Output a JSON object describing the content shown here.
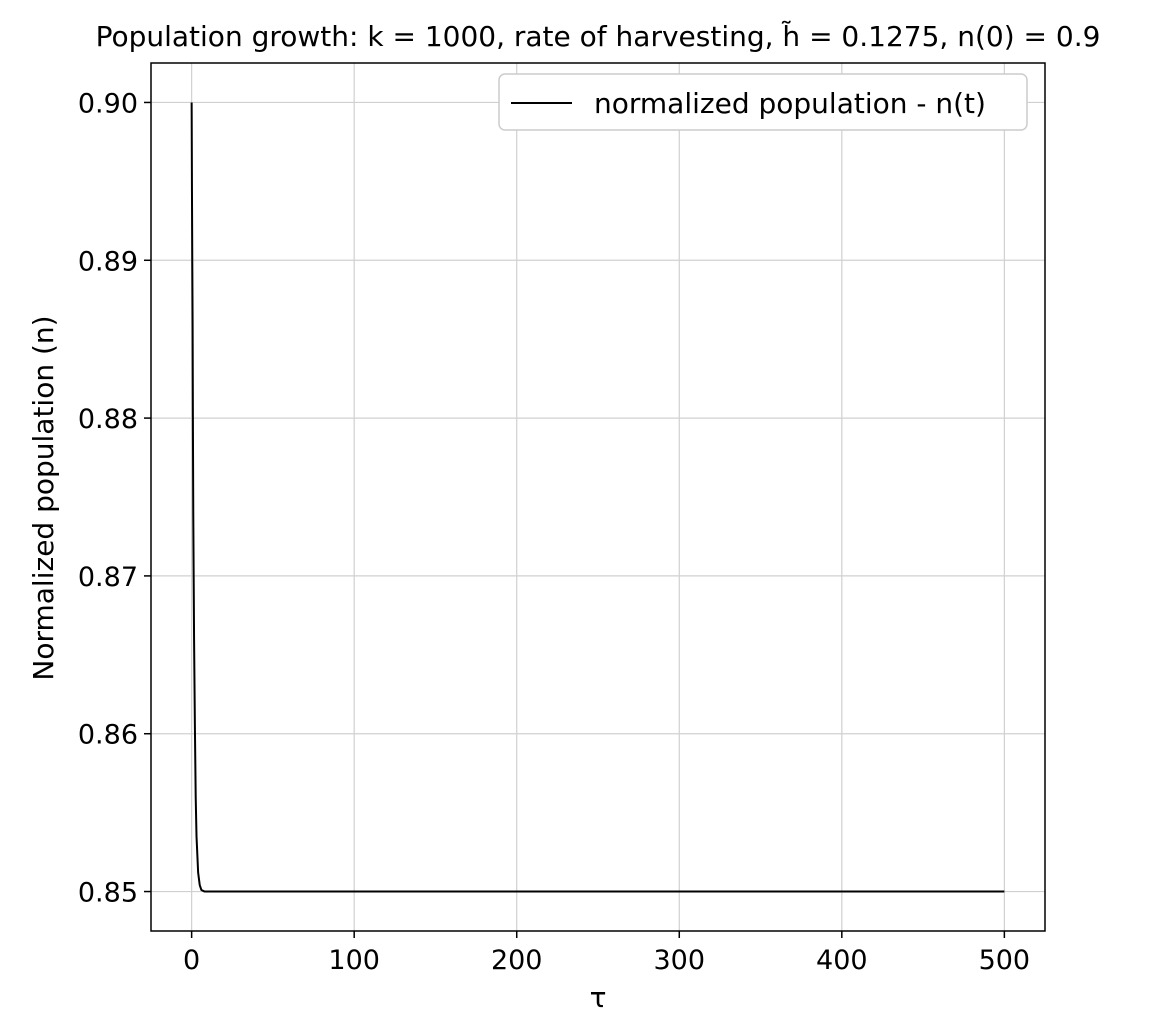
{
  "chart_data": {
    "type": "line",
    "title": "Population growth: k = 1000, rate of harvesting, h̃ = 0.1275, n(0) = 0.9",
    "xlabel": "τ",
    "ylabel": "Normalized population (n)",
    "xlim": [
      -25,
      525
    ],
    "ylim": [
      0.8475,
      0.9025
    ],
    "xticks": [
      0,
      100,
      200,
      300,
      400,
      500
    ],
    "xtick_labels": [
      "0",
      "100",
      "200",
      "300",
      "400",
      "500"
    ],
    "yticks": [
      0.85,
      0.86,
      0.87,
      0.88,
      0.89,
      0.9
    ],
    "ytick_labels": [
      "0.85",
      "0.86",
      "0.87",
      "0.88",
      "0.89",
      "0.90"
    ],
    "grid": true,
    "legend_position": "top-right",
    "series": [
      {
        "name": "normalized population - n(t)",
        "color": "#000000",
        "x": [
          0,
          0.2,
          0.4,
          0.6,
          0.8,
          1.0,
          1.5,
          2.0,
          2.5,
          3.0,
          4.0,
          5.0,
          6.0,
          8.0,
          10,
          20,
          50,
          100,
          200,
          300,
          400,
          500
        ],
        "y": [
          0.9,
          0.8944,
          0.8898,
          0.8859,
          0.8791,
          0.874,
          0.866,
          0.8605,
          0.856,
          0.8535,
          0.8512,
          0.8504,
          0.8501,
          0.85,
          0.85,
          0.85,
          0.85,
          0.85,
          0.85,
          0.85,
          0.85,
          0.85
        ]
      }
    ]
  }
}
